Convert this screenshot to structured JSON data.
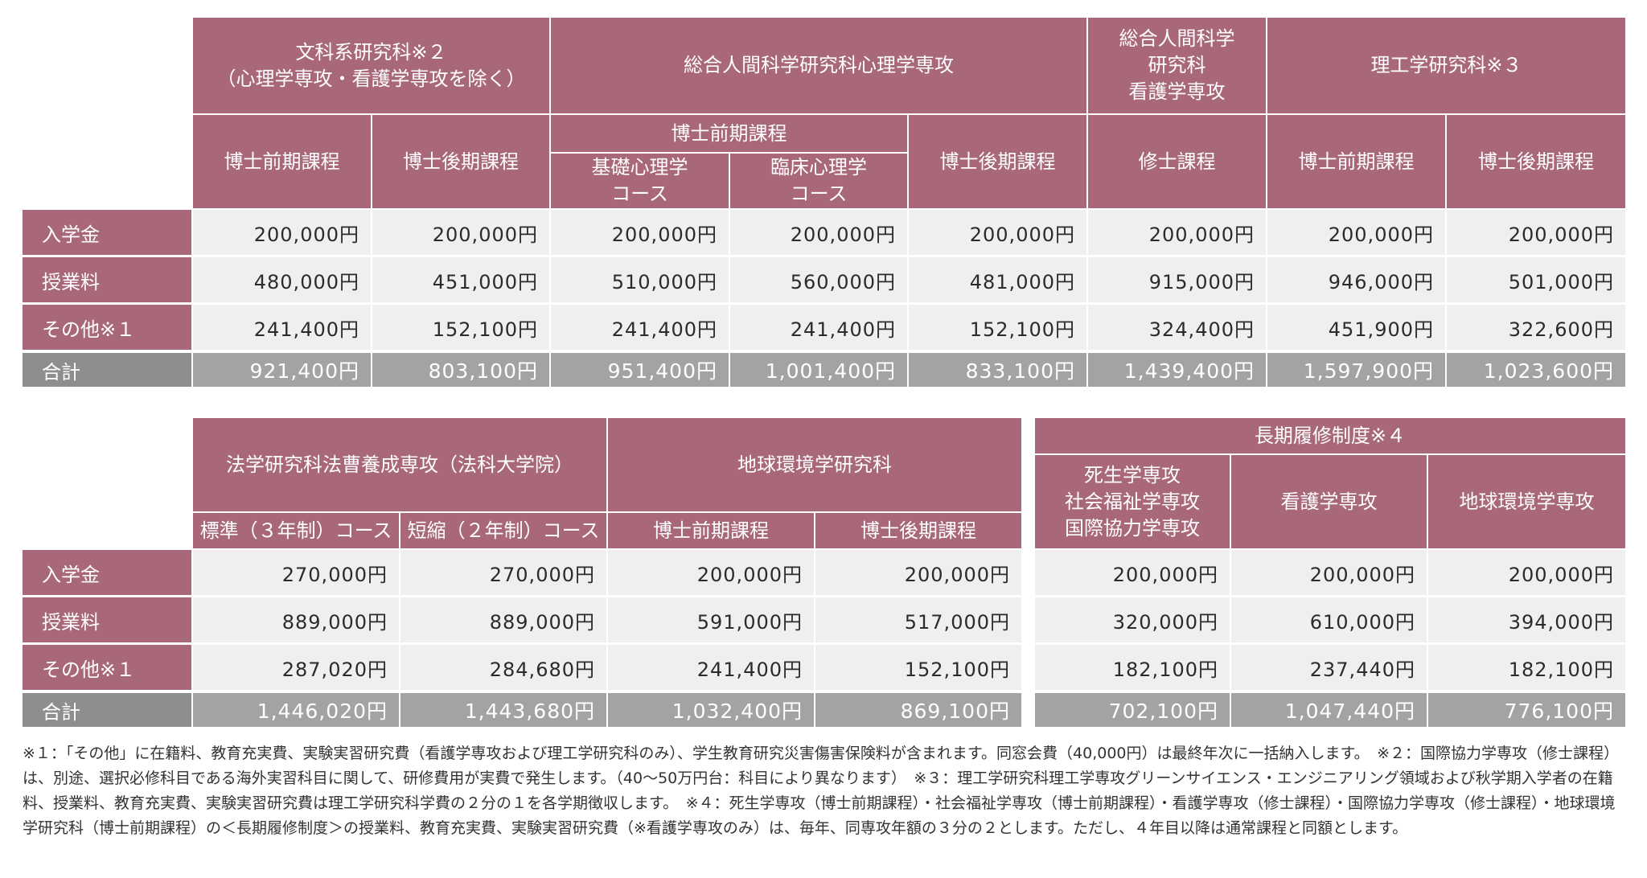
{
  "table1": {
    "groups": [
      "文科系研究科※２\n（心理学専攻・看護学専攻を除く）",
      "総合人間科学研究科心理学専攻",
      "総合人間科学\n研究科\n看護学専攻",
      "理工学研究科※３"
    ],
    "subgroup": "博士前期課程",
    "columns": [
      "博士前期課程",
      "博士後期課程",
      "基礎心理学\nコース",
      "臨床心理学\nコース",
      "博士後期課程",
      "修士課程",
      "博士前期課程",
      "博士後期課程"
    ],
    "rows": [
      {
        "label": "入学金",
        "values": [
          "200,000円",
          "200,000円",
          "200,000円",
          "200,000円",
          "200,000円",
          "200,000円",
          "200,000円",
          "200,000円"
        ]
      },
      {
        "label": "授業料",
        "values": [
          "480,000円",
          "451,000円",
          "510,000円",
          "560,000円",
          "481,000円",
          "915,000円",
          "946,000円",
          "501,000円"
        ]
      },
      {
        "label": "その他※１",
        "values": [
          "241,400円",
          "152,100円",
          "241,400円",
          "241,400円",
          "152,100円",
          "324,400円",
          "451,900円",
          "322,600円"
        ]
      }
    ],
    "total": {
      "label": "合計",
      "values": [
        "921,400円",
        "803,100円",
        "951,400円",
        "1,001,400円",
        "833,100円",
        "1,439,400円",
        "1,597,900円",
        "1,023,600円"
      ]
    }
  },
  "table2": {
    "groups": [
      "法学研究科法曹養成専攻（法科大学院）",
      "地球環境学研究科"
    ],
    "columns": [
      "標準（３年制）コース",
      "短縮（２年制）コース",
      "博士前期課程",
      "博士後期課程"
    ],
    "rows": [
      {
        "label": "入学金",
        "values": [
          "270,000円",
          "270,000円",
          "200,000円",
          "200,000円"
        ]
      },
      {
        "label": "授業料",
        "values": [
          "889,000円",
          "889,000円",
          "591,000円",
          "517,000円"
        ]
      },
      {
        "label": "その他※１",
        "values": [
          "287,020円",
          "284,680円",
          "241,400円",
          "152,100円"
        ]
      }
    ],
    "total": {
      "label": "合計",
      "values": [
        "1,446,020円",
        "1,443,680円",
        "1,032,400円",
        "869,100円"
      ]
    }
  },
  "table3": {
    "group": "長期履修制度※４",
    "columns": [
      "死生学専攻\n社会福祉学専攻\n国際協力学専攻",
      "看護学専攻",
      "地球環境学専攻"
    ],
    "rows": [
      {
        "values": [
          "200,000円",
          "200,000円",
          "200,000円"
        ]
      },
      {
        "values": [
          "320,000円",
          "610,000円",
          "394,000円"
        ]
      },
      {
        "values": [
          "182,100円",
          "237,440円",
          "182,100円"
        ]
      }
    ],
    "total": {
      "values": [
        "702,100円",
        "1,047,440円",
        "776,100円"
      ]
    }
  },
  "notes": "※１：「その他」に在籍料、教育充実費、実験実習研究費（看護学専攻および理工学研究科のみ）、学生教育研究災害傷害保険料が含まれます。同窓会費（40,000円）は最終年次に一括納入します。　※２：国際協力学専攻（修士課程）は、別途、選択必修科目である海外実習科目に関して、研修費用が実費で発生します。（40〜50万円台：科目により異なります）　※３：理工学研究科理工学専攻グリーンサイエンス・エンジニアリング領域および秋学期入学者の在籍料、授業料、教育充実費、実験実習研究費は理工学研究科学費の２分の１を各学期徴収します。　※４：死生学専攻（博士前期課程）・社会福祉学専攻（博士前期課程）・看護学専攻（修士課程）・国際協力学専攻（修士課程）・地球環境学研究科（博士前期課程）の＜長期履修制度＞の授業料、教育充実費、実験実習研究費（※看護学専攻のみ）は、毎年、同専攻年額の３分の２とします。ただし、４年目以降は通常課程と同額とします。",
  "colors": {
    "header": "#a9687a",
    "cell": "#efefef",
    "total_label": "#8e8e8e",
    "total_cell": "#a3a3a3"
  }
}
